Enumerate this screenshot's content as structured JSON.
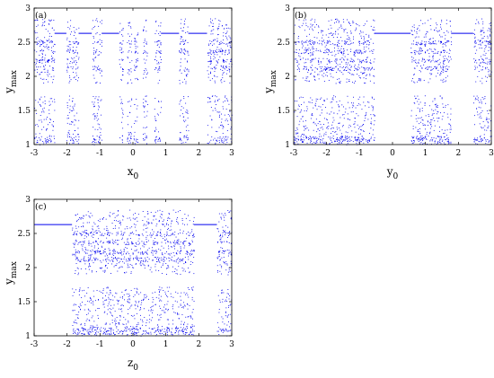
{
  "figure": {
    "point_color": "#0000ee",
    "axis_color": "#000000"
  },
  "chart_data": [
    {
      "type": "scatter",
      "panel_label": "(a)",
      "xlabel_base": "x",
      "xlabel_sub": "0",
      "ylabel_base": "y",
      "ylabel_sub": "max",
      "xlim": [
        -3,
        3
      ],
      "ylim": [
        1,
        3
      ],
      "xticks": [
        "-3",
        "-2",
        "-1",
        "0",
        "1",
        "2",
        "3"
      ],
      "yticks": [
        "1",
        "1.5",
        "2",
        "2.5",
        "3"
      ],
      "grid": false,
      "chaotic_x_intervals": [
        [
          -3.0,
          -2.38
        ],
        [
          -2.02,
          -1.65
        ],
        [
          -1.25,
          -0.95
        ],
        [
          -0.42,
          -0.3
        ],
        [
          -0.18,
          -0.04
        ],
        [
          0.02,
          0.15
        ],
        [
          0.3,
          0.44
        ],
        [
          0.65,
          0.85
        ],
        [
          1.4,
          1.68
        ],
        [
          2.25,
          3.0
        ]
      ],
      "chaotic_y_band": [
        1.0,
        2.85
      ],
      "periodic_attractor": {
        "y": 2.63,
        "x_intervals": [
          [
            -2.38,
            -2.02
          ],
          [
            -1.65,
            -1.25
          ],
          [
            -0.95,
            -0.42
          ],
          [
            0.85,
            1.4
          ],
          [
            1.68,
            2.25
          ]
        ]
      },
      "dense_bands": [
        2.37,
        2.23,
        2.12,
        2.5,
        1.1,
        1.05
      ]
    },
    {
      "type": "scatter",
      "panel_label": "(b)",
      "xlabel_base": "y",
      "xlabel_sub": "0",
      "ylabel_base": "y",
      "ylabel_sub": "max",
      "xlim": [
        -3,
        3
      ],
      "ylim": [
        1,
        3
      ],
      "xticks": [
        "-3",
        "-2",
        "-1",
        "0",
        "1",
        "2",
        "3"
      ],
      "yticks": [
        "1",
        "1.5",
        "2",
        "2.5",
        "3"
      ],
      "grid": false,
      "chaotic_x_intervals": [
        [
          -3.0,
          -0.55
        ],
        [
          0.55,
          1.78
        ],
        [
          2.45,
          3.0
        ]
      ],
      "chaotic_y_band": [
        1.0,
        2.85
      ],
      "periodic_attractor": {
        "y": 2.63,
        "x_intervals": [
          [
            -0.55,
            0.55
          ],
          [
            1.78,
            2.45
          ]
        ]
      },
      "dense_bands": [
        2.37,
        2.23,
        2.12,
        2.5,
        1.1,
        1.05
      ]
    },
    {
      "type": "scatter",
      "panel_label": "(c)",
      "xlabel_base": "z",
      "xlabel_sub": "0",
      "ylabel_base": "y",
      "ylabel_sub": "max",
      "xlim": [
        -3,
        3
      ],
      "ylim": [
        1,
        3
      ],
      "xticks": [
        "-3",
        "-2",
        "-1",
        "0",
        "1",
        "2",
        "3"
      ],
      "yticks": [
        "1",
        "1.5",
        "2",
        "2.5",
        "3"
      ],
      "grid": false,
      "chaotic_x_intervals": [
        [
          -1.85,
          1.85
        ],
        [
          2.55,
          3.0
        ]
      ],
      "chaotic_y_band": [
        1.0,
        2.85
      ],
      "periodic_attractor": {
        "y": 2.63,
        "x_intervals": [
          [
            -3.0,
            -1.85
          ],
          [
            1.85,
            2.55
          ]
        ]
      },
      "dense_bands": [
        2.37,
        2.23,
        2.12,
        2.5,
        1.1,
        1.05
      ]
    }
  ]
}
